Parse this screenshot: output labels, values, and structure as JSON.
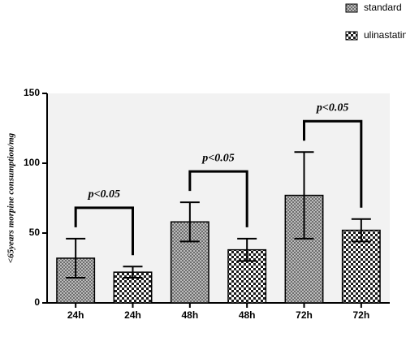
{
  "chart_data": {
    "type": "bar",
    "ylabel": "<65years morpine consumption/mg",
    "categories": [
      "24h",
      "24h",
      "48h",
      "48h",
      "72h",
      "72h"
    ],
    "series": [
      {
        "name": "standard",
        "color": "#6e6e6e",
        "values": [
          32,
          null,
          58,
          null,
          77,
          null
        ],
        "errors": [
          14,
          null,
          14,
          null,
          31,
          null
        ]
      },
      {
        "name": "ulinastatin",
        "color": "#1a1a1a",
        "values": [
          null,
          22,
          null,
          38,
          null,
          52
        ],
        "errors": [
          null,
          4,
          null,
          8,
          null,
          8
        ]
      }
    ],
    "annotations": [
      "p<0.05",
      "p<0.05",
      "p<0.05"
    ],
    "ylim": [
      0,
      150
    ],
    "yticks": [
      0,
      50,
      100,
      150
    ]
  }
}
